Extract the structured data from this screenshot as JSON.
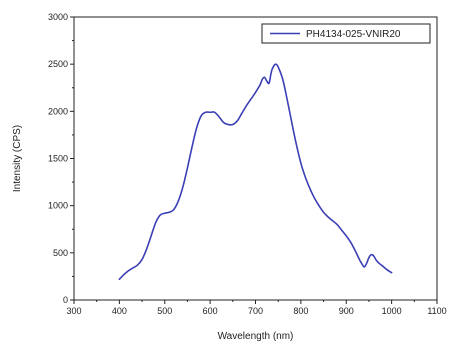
{
  "chart_data": {
    "type": "line",
    "xlabel": "Wavelength (nm)",
    "ylabel": "Intensity (CPS)",
    "xlim": [
      300,
      1100
    ],
    "ylim": [
      0,
      3000
    ],
    "xticks": [
      300,
      400,
      500,
      600,
      700,
      800,
      900,
      1000,
      1100
    ],
    "yticks": [
      0,
      500,
      1000,
      1500,
      2000,
      2500,
      3000
    ],
    "grid": false,
    "legend_position": "top-right",
    "series": [
      {
        "name": "PH4134-025-VNIR20",
        "color": "#3b3fb5",
        "x": [
          400,
          410,
          420,
          430,
          440,
          450,
          460,
          470,
          480,
          490,
          500,
          510,
          520,
          530,
          540,
          550,
          560,
          570,
          580,
          590,
          600,
          610,
          620,
          630,
          640,
          650,
          660,
          670,
          680,
          690,
          700,
          710,
          715,
          720,
          725,
          730,
          735,
          740,
          745,
          750,
          760,
          770,
          780,
          790,
          800,
          810,
          820,
          830,
          840,
          850,
          860,
          870,
          880,
          890,
          900,
          910,
          920,
          930,
          935,
          940,
          945,
          950,
          955,
          960,
          965,
          970,
          980,
          990,
          1000
        ],
        "y": [
          220,
          270,
          310,
          340,
          370,
          430,
          540,
          680,
          820,
          900,
          920,
          930,
          960,
          1050,
          1200,
          1400,
          1620,
          1820,
          1950,
          1990,
          1990,
          1990,
          1940,
          1880,
          1860,
          1860,
          1900,
          1980,
          2060,
          2130,
          2200,
          2280,
          2340,
          2360,
          2320,
          2300,
          2420,
          2480,
          2500,
          2470,
          2340,
          2120,
          1880,
          1650,
          1450,
          1300,
          1180,
          1080,
          1000,
          930,
          880,
          840,
          800,
          740,
          680,
          610,
          520,
          420,
          380,
          350,
          390,
          450,
          480,
          470,
          430,
          400,
          360,
          320,
          290
        ]
      }
    ]
  }
}
